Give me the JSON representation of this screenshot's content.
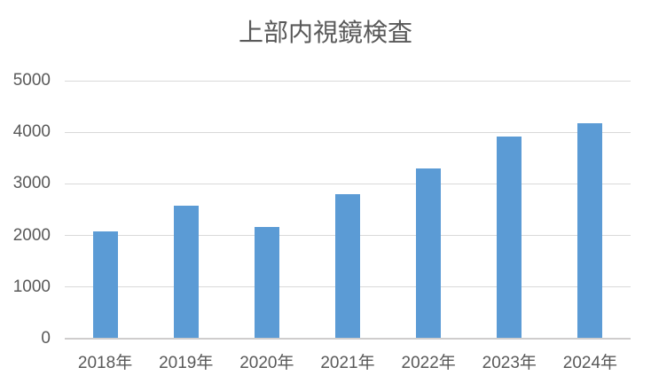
{
  "chart_data": {
    "type": "bar",
    "title": "上部内視鏡検査",
    "categories": [
      "2018年",
      "2019年",
      "2020年",
      "2021年",
      "2022年",
      "2023年",
      "2024年"
    ],
    "values": [
      2060,
      2560,
      2150,
      2790,
      3280,
      3900,
      4150
    ],
    "ylim": [
      0,
      5000
    ],
    "ytick_interval": 1000,
    "ytick_labels": [
      "0",
      "1000",
      "2000",
      "3000",
      "4000",
      "5000"
    ],
    "xlabel": "",
    "ylabel": "",
    "grid": "horizontal",
    "legend": "none",
    "colors": {
      "bar": "#5B9BD5",
      "gridline": "#D9D9D9",
      "axis_line": "#CFCDCD",
      "text": "#595959",
      "background": "#FFFFFF"
    }
  }
}
